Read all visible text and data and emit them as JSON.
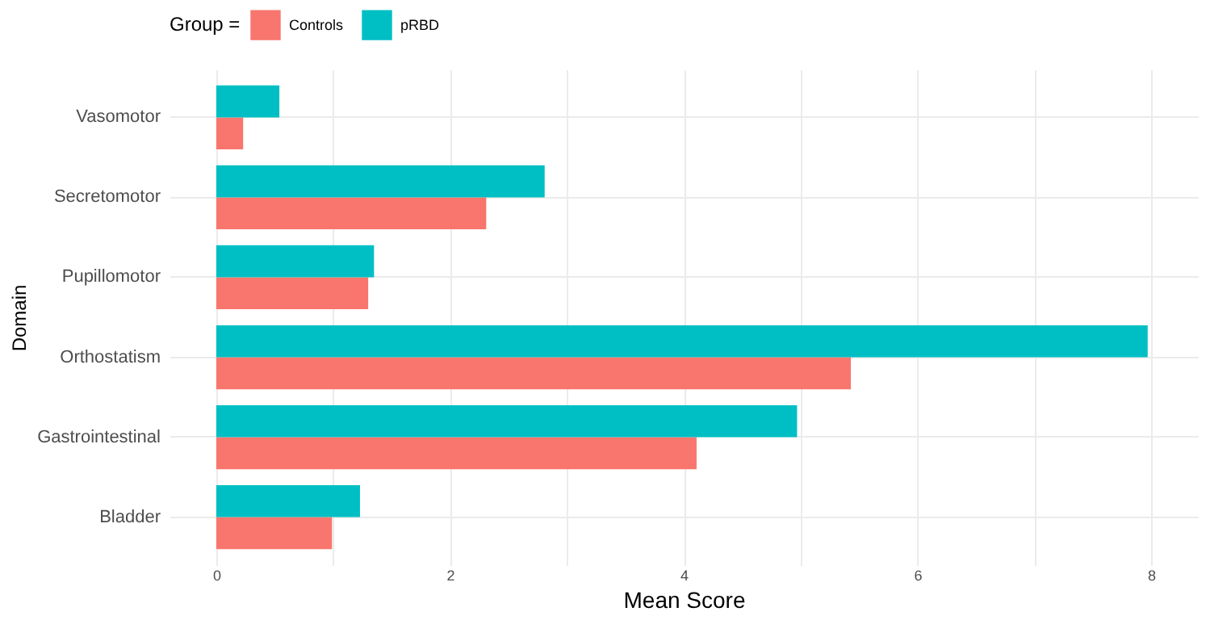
{
  "chart_data": {
    "type": "bar",
    "orientation": "horizontal",
    "xlabel": "Mean Score",
    "ylabel": "Domain",
    "legend_title": "Group =",
    "legend": "top",
    "categories": [
      "Vasomotor",
      "Secretomotor",
      "Pupillomotor",
      "Orthostatism",
      "Gastrointestinal",
      "Bladder"
    ],
    "series": [
      {
        "name": "Controls",
        "color": "#f8766d",
        "values": [
          0.23,
          2.31,
          1.3,
          5.43,
          4.11,
          0.99
        ]
      },
      {
        "name": "pRBD",
        "color": "#00bfc4",
        "values": [
          0.54,
          2.81,
          1.35,
          7.97,
          4.97,
          1.23
        ]
      }
    ],
    "xlim": [
      -0.4,
      8.4
    ],
    "xticks": [
      0,
      {
        "value": 1,
        "label": null
      },
      2,
      {
        "value": 3,
        "label": null
      },
      4,
      {
        "value": 5,
        "label": null
      },
      6,
      {
        "value": 7,
        "label": null
      },
      8
    ],
    "grid": true
  }
}
